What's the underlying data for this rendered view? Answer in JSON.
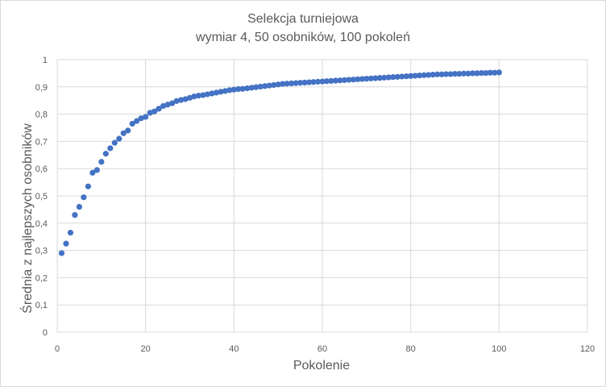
{
  "chart_data": {
    "type": "scatter",
    "title": "Selekcja turniejowa",
    "subtitle": "wymiar 4, 50 osobników, 100 pokoleń",
    "xlabel": "Pokolenie",
    "ylabel": "Średnia z najlepszych osobników",
    "xlim": [
      0,
      120
    ],
    "ylim": [
      0,
      1
    ],
    "x_ticks": [
      "0",
      "20",
      "40",
      "60",
      "80",
      "100",
      "120"
    ],
    "y_ticks": [
      "0",
      "0,1",
      "0,2",
      "0,3",
      "0,4",
      "0,5",
      "0,6",
      "0,7",
      "0,8",
      "0,9",
      "1"
    ],
    "grid": true,
    "marker_color": "#4472c4",
    "series": [
      {
        "x": [
          1,
          2,
          3,
          4,
          5,
          6,
          7,
          8,
          9,
          10,
          11,
          12,
          13,
          14,
          15,
          16,
          17,
          18,
          19,
          20,
          21,
          22,
          23,
          24,
          25,
          26,
          27,
          28,
          29,
          30,
          31,
          32,
          33,
          34,
          35,
          36,
          37,
          38,
          39,
          40,
          41,
          42,
          43,
          44,
          45,
          46,
          47,
          48,
          49,
          50,
          51,
          52,
          53,
          54,
          55,
          56,
          57,
          58,
          59,
          60,
          61,
          62,
          63,
          64,
          65,
          66,
          67,
          68,
          69,
          70,
          71,
          72,
          73,
          74,
          75,
          76,
          77,
          78,
          79,
          80,
          81,
          82,
          83,
          84,
          85,
          86,
          87,
          88,
          89,
          90,
          91,
          92,
          93,
          94,
          95,
          96,
          97,
          98,
          99,
          100
        ],
        "values": [
          0.29,
          0.325,
          0.365,
          0.43,
          0.46,
          0.495,
          0.535,
          0.585,
          0.595,
          0.625,
          0.655,
          0.675,
          0.695,
          0.71,
          0.73,
          0.74,
          0.765,
          0.775,
          0.785,
          0.79,
          0.805,
          0.81,
          0.82,
          0.83,
          0.835,
          0.84,
          0.848,
          0.852,
          0.855,
          0.86,
          0.865,
          0.868,
          0.87,
          0.873,
          0.876,
          0.879,
          0.882,
          0.885,
          0.888,
          0.89,
          0.892,
          0.893,
          0.895,
          0.897,
          0.899,
          0.901,
          0.903,
          0.905,
          0.907,
          0.909,
          0.911,
          0.912,
          0.913,
          0.914,
          0.915,
          0.916,
          0.917,
          0.918,
          0.919,
          0.92,
          0.921,
          0.922,
          0.923,
          0.924,
          0.925,
          0.926,
          0.927,
          0.928,
          0.929,
          0.93,
          0.931,
          0.932,
          0.933,
          0.934,
          0.935,
          0.936,
          0.937,
          0.938,
          0.939,
          0.94,
          0.941,
          0.942,
          0.943,
          0.944,
          0.945,
          0.946,
          0.946,
          0.947,
          0.947,
          0.948,
          0.948,
          0.949,
          0.949,
          0.95,
          0.95,
          0.951,
          0.951,
          0.952,
          0.952,
          0.953
        ]
      }
    ]
  }
}
